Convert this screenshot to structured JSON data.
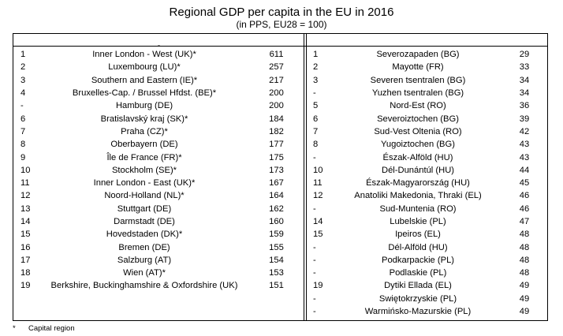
{
  "title": "Regional GDP per capita in the EU in 2016",
  "subtitle": "(in PPS, EU28 = 100)",
  "header_mark": "ˍ",
  "left_rows": [
    {
      "rank": "1",
      "region": "Inner London - West (UK)*",
      "value": "611"
    },
    {
      "rank": "2",
      "region": "Luxembourg (LU)*",
      "value": "257"
    },
    {
      "rank": "3",
      "region": "Southern and Eastern (IE)*",
      "value": "217"
    },
    {
      "rank": "4",
      "region": "Bruxelles-Cap. / Brussel Hfdst. (BE)*",
      "value": "200"
    },
    {
      "rank": "-",
      "region": "Hamburg (DE)",
      "value": "200"
    },
    {
      "rank": "6",
      "region": "Bratislavský kraj (SK)*",
      "value": "184"
    },
    {
      "rank": "7",
      "region": "Praha (CZ)*",
      "value": "182"
    },
    {
      "rank": "8",
      "region": "Oberbayern (DE)",
      "value": "177"
    },
    {
      "rank": "9",
      "region": "Île de France (FR)*",
      "value": "175"
    },
    {
      "rank": "10",
      "region": "Stockholm (SE)*",
      "value": "173"
    },
    {
      "rank": "11",
      "region": "Inner London - East (UK)*",
      "value": "167"
    },
    {
      "rank": "12",
      "region": "Noord-Holland (NL)*",
      "value": "164"
    },
    {
      "rank": "13",
      "region": "Stuttgart (DE)",
      "value": "162"
    },
    {
      "rank": "14",
      "region": "Darmstadt (DE)",
      "value": "160"
    },
    {
      "rank": "15",
      "region": "Hovedstaden (DK)*",
      "value": "159"
    },
    {
      "rank": "16",
      "region": "Bremen (DE)",
      "value": "155"
    },
    {
      "rank": "17",
      "region": "Salzburg (AT)",
      "value": "154"
    },
    {
      "rank": "18",
      "region": "Wien (AT)*",
      "value": "153"
    },
    {
      "rank": "19",
      "region": "Berkshire, Buckinghamshire & Oxfordshire (UK)",
      "value": "151"
    }
  ],
  "right_rows": [
    {
      "rank": "1",
      "region": "Severozapaden (BG)",
      "value": "29"
    },
    {
      "rank": "2",
      "region": "Mayotte (FR)",
      "value": "33"
    },
    {
      "rank": "3",
      "region": "Severen tsentralen (BG)",
      "value": "34"
    },
    {
      "rank": "-",
      "region": "Yuzhen tsentralen (BG)",
      "value": "34"
    },
    {
      "rank": "5",
      "region": "Nord-Est (RO)",
      "value": "36"
    },
    {
      "rank": "6",
      "region": "Severoiztochen (BG)",
      "value": "39"
    },
    {
      "rank": "7",
      "region": "Sud-Vest Oltenia (RO)",
      "value": "42"
    },
    {
      "rank": "8",
      "region": "Yugoiztochen (BG)",
      "value": "43"
    },
    {
      "rank": "-",
      "region": "Észak-Alföld (HU)",
      "value": "43"
    },
    {
      "rank": "10",
      "region": "Dél-Dunántúl (HU)",
      "value": "44"
    },
    {
      "rank": "11",
      "region": "Észak-Magyarország (HU)",
      "value": "45"
    },
    {
      "rank": "12",
      "region": "Anatoliki Makedonia, Thraki (EL)",
      "value": "46"
    },
    {
      "rank": "-",
      "region": "Sud-Muntenia (RO)",
      "value": "46"
    },
    {
      "rank": "14",
      "region": "Lubelskie (PL)",
      "value": "47"
    },
    {
      "rank": "15",
      "region": "Ipeiros (EL)",
      "value": "48"
    },
    {
      "rank": "-",
      "region": "Dél-Alföld (HU)",
      "value": "48"
    },
    {
      "rank": "-",
      "region": "Podkarpackie (PL)",
      "value": "48"
    },
    {
      "rank": "-",
      "region": "Podlaskie (PL)",
      "value": "48"
    },
    {
      "rank": "19",
      "region": "Dytiki Ellada (EL)",
      "value": "49"
    },
    {
      "rank": "-",
      "region": "Swiętokrzyskie (PL)",
      "value": "49"
    },
    {
      "rank": "-",
      "region": "Warmińsko-Mazurskie (PL)",
      "value": "49"
    }
  ],
  "footnote": {
    "symbol": "*",
    "text": "Capital region"
  }
}
